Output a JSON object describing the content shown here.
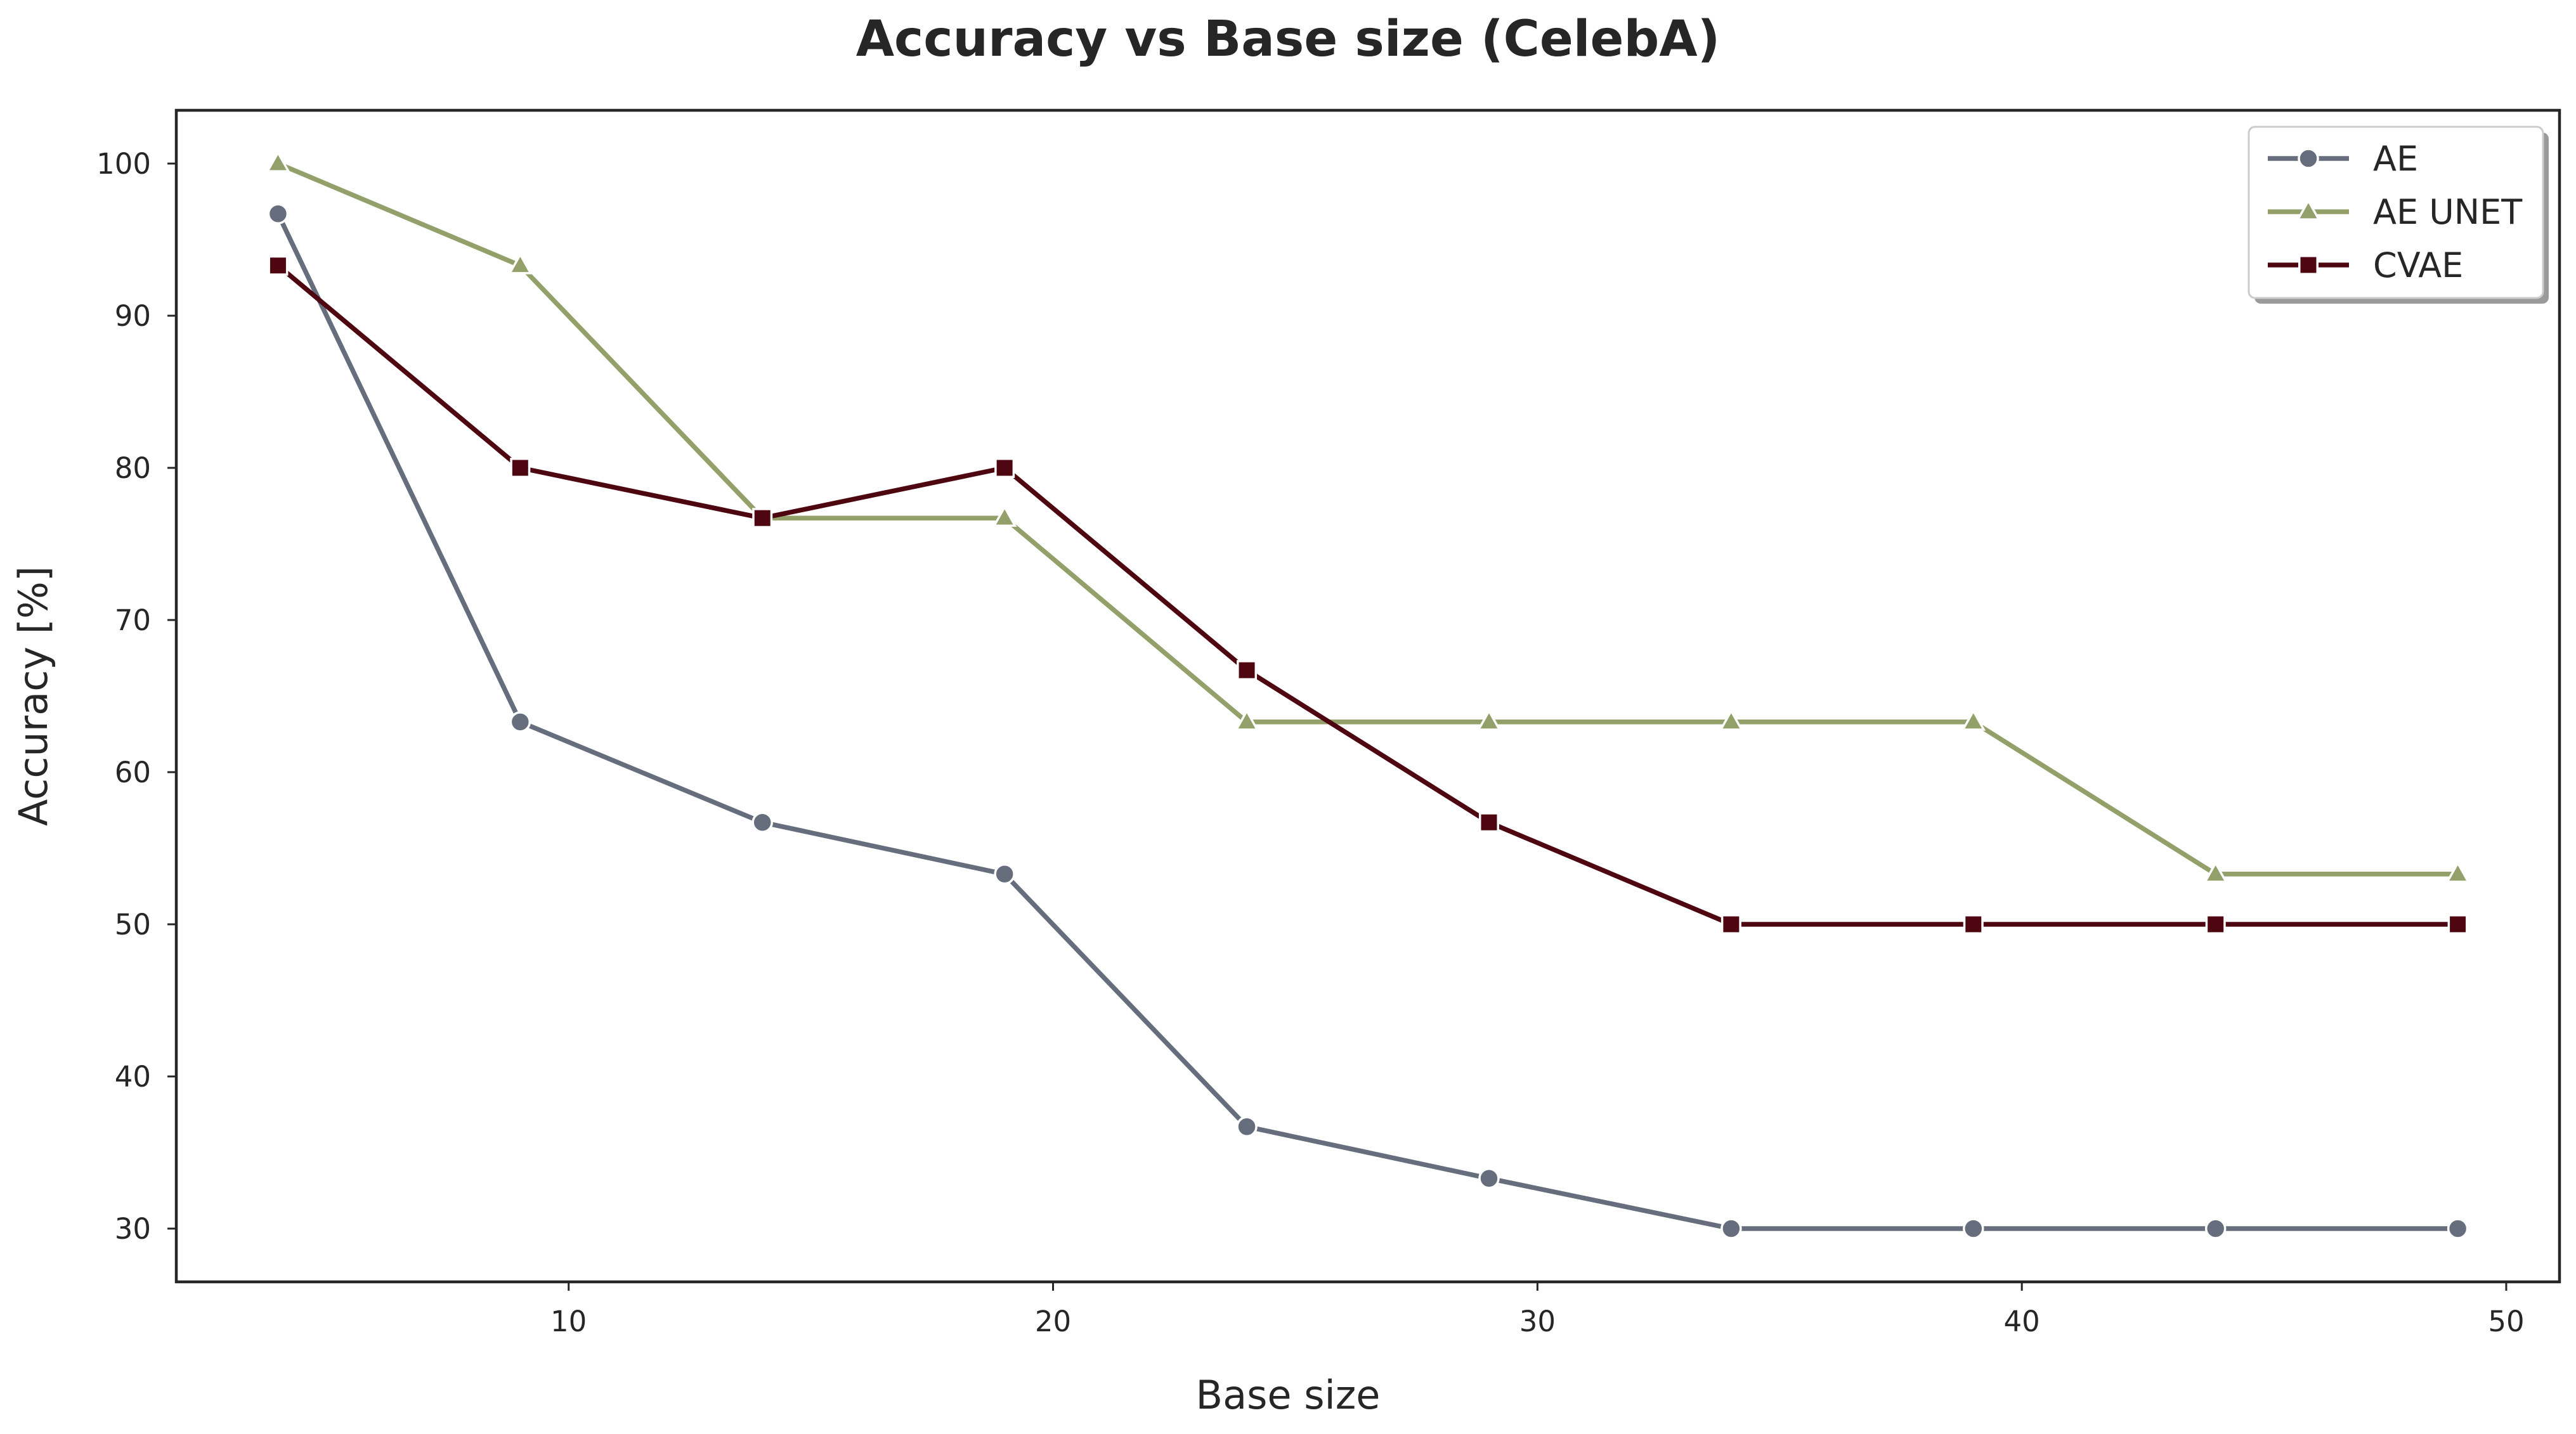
{
  "chart_data": {
    "type": "line",
    "title": "Accuracy vs Base size (CelebA)",
    "xlabel": "Base size",
    "ylabel": "Accuracy [%]",
    "xlim": [
      1.9,
      51.1
    ],
    "ylim": [
      26.5,
      103.5
    ],
    "xticks": [
      10,
      20,
      30,
      40,
      50
    ],
    "yticks": [
      30,
      40,
      50,
      60,
      70,
      80,
      90,
      100
    ],
    "grid": false,
    "legend": "top-right",
    "x": [
      4,
      9,
      14,
      19,
      24,
      29,
      34,
      39,
      44,
      49
    ],
    "series": [
      {
        "name": "AE",
        "marker": "circle",
        "color": "#666e7d",
        "values": [
          96.7,
          63.3,
          56.7,
          53.3,
          36.7,
          33.3,
          30.0,
          30.0,
          30.0,
          30.0
        ]
      },
      {
        "name": "AE UNET",
        "marker": "triangle",
        "color": "#93a06a",
        "values": [
          100.0,
          93.3,
          76.7,
          76.7,
          63.3,
          63.3,
          63.3,
          63.3,
          53.3,
          53.3
        ]
      },
      {
        "name": "CVAE",
        "marker": "square",
        "color": "#4e0710",
        "values": [
          93.3,
          80.0,
          76.7,
          80.0,
          66.7,
          56.7,
          50.0,
          50.0,
          50.0,
          50.0
        ]
      }
    ]
  }
}
